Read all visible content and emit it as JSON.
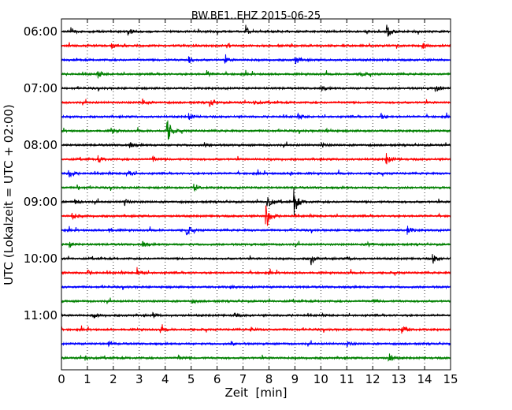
{
  "chart_data": {
    "type": "line",
    "subtype": "dayplot-seismogram",
    "title": "BW.BE1..EHZ 2015-06-25",
    "xlabel": "Zeit  [min]",
    "ylabel": "UTC (Lokalzeit = UTC + 02:00)",
    "xlim": [
      0,
      15
    ],
    "x_ticks": [
      "0",
      "1",
      "2",
      "3",
      "4",
      "5",
      "6",
      "7",
      "8",
      "9",
      "10",
      "11",
      "12",
      "13",
      "14",
      "15"
    ],
    "y_ticks": [
      "06:00",
      "07:00",
      "08:00",
      "09:00",
      "10:00",
      "11:00"
    ],
    "row_interval_minutes": 15,
    "grid": "vertical dotted at each minute",
    "colors": [
      "#000000",
      "#ff0000",
      "#0000ff",
      "#008000"
    ],
    "rows": [
      {
        "start": "06:00",
        "events": [
          {
            "t": 0.35,
            "a": 5
          },
          {
            "t": 2.55,
            "a": 6
          },
          {
            "t": 7.1,
            "a": 8
          },
          {
            "t": 12.5,
            "a": 13
          }
        ]
      },
      {
        "start": "06:15",
        "events": [
          {
            "t": 1.9,
            "a": 4
          },
          {
            "t": 6.3,
            "a": 5
          },
          {
            "t": 13.9,
            "a": 4
          }
        ]
      },
      {
        "start": "06:30",
        "events": [
          {
            "t": 4.9,
            "a": 4
          },
          {
            "t": 6.3,
            "a": 4
          },
          {
            "t": 9.0,
            "a": 7
          }
        ]
      },
      {
        "start": "06:45",
        "events": [
          {
            "t": 1.4,
            "a": 5
          },
          {
            "t": 5.6,
            "a": 4
          },
          {
            "t": 11.5,
            "a": 4
          }
        ]
      },
      {
        "start": "07:00",
        "events": [
          {
            "t": 14.4,
            "a": 5
          },
          {
            "t": 10.0,
            "a": 3
          }
        ]
      },
      {
        "start": "07:15",
        "events": [
          {
            "t": 3.1,
            "a": 5
          },
          {
            "t": 5.7,
            "a": 6
          },
          {
            "t": 7.4,
            "a": 4
          }
        ]
      },
      {
        "start": "07:30",
        "events": [
          {
            "t": 4.9,
            "a": 5
          },
          {
            "t": 9.1,
            "a": 4
          },
          {
            "t": 12.3,
            "a": 4
          }
        ]
      },
      {
        "start": "07:45",
        "events": [
          {
            "t": 1.9,
            "a": 5
          },
          {
            "t": 4.05,
            "a": 22
          },
          {
            "t": 10.2,
            "a": 4
          }
        ]
      },
      {
        "start": "08:00",
        "events": [
          {
            "t": 2.6,
            "a": 4
          },
          {
            "t": 5.5,
            "a": 3
          },
          {
            "t": 10.0,
            "a": 3
          }
        ]
      },
      {
        "start": "08:15",
        "events": [
          {
            "t": 1.4,
            "a": 5
          },
          {
            "t": 12.5,
            "a": 9
          },
          {
            "t": 3.5,
            "a": 4
          }
        ]
      },
      {
        "start": "08:30",
        "events": [
          {
            "t": 0.25,
            "a": 9
          },
          {
            "t": 2.5,
            "a": 7
          },
          {
            "t": 8.8,
            "a": 3
          }
        ]
      },
      {
        "start": "08:45",
        "events": [
          {
            "t": 5.1,
            "a": 5
          },
          {
            "t": 0.6,
            "a": 3
          }
        ]
      },
      {
        "start": "09:00",
        "events": [
          {
            "t": 0.5,
            "a": 4
          },
          {
            "t": 2.4,
            "a": 6
          },
          {
            "t": 7.9,
            "a": 12
          },
          {
            "t": 8.95,
            "a": 22
          }
        ]
      },
      {
        "start": "09:15",
        "events": [
          {
            "t": 0.4,
            "a": 6
          },
          {
            "t": 7.85,
            "a": 26
          }
        ]
      },
      {
        "start": "09:30",
        "events": [
          {
            "t": 4.8,
            "a": 9
          },
          {
            "t": 13.3,
            "a": 7
          },
          {
            "t": 1.8,
            "a": 3
          }
        ]
      },
      {
        "start": "09:45",
        "events": [
          {
            "t": 0.3,
            "a": 4
          },
          {
            "t": 3.1,
            "a": 4
          },
          {
            "t": 11.8,
            "a": 3
          }
        ]
      },
      {
        "start": "10:00",
        "events": [
          {
            "t": 9.6,
            "a": 9
          },
          {
            "t": 14.3,
            "a": 7
          },
          {
            "t": 11.0,
            "a": 3
          }
        ]
      },
      {
        "start": "10:15",
        "events": [
          {
            "t": 2.9,
            "a": 8
          },
          {
            "t": 1.0,
            "a": 3
          }
        ]
      },
      {
        "start": "10:30",
        "events": [
          {
            "t": 6.5,
            "a": 2
          }
        ]
      },
      {
        "start": "10:45",
        "events": [
          {
            "t": 5.0,
            "a": 3
          },
          {
            "t": 12.0,
            "a": 3
          }
        ]
      },
      {
        "start": "11:00",
        "events": [
          {
            "t": 1.2,
            "a": 4
          },
          {
            "t": 3.5,
            "a": 3
          },
          {
            "t": 6.6,
            "a": 4
          }
        ]
      },
      {
        "start": "11:15",
        "events": [
          {
            "t": 3.8,
            "a": 4
          },
          {
            "t": 13.1,
            "a": 8
          },
          {
            "t": 7.3,
            "a": 3
          }
        ]
      },
      {
        "start": "11:30",
        "events": [
          {
            "t": 1.8,
            "a": 3
          },
          {
            "t": 6.5,
            "a": 4
          },
          {
            "t": 11.0,
            "a": 3
          }
        ]
      },
      {
        "start": "11:45",
        "events": [
          {
            "t": 0.9,
            "a": 4
          },
          {
            "t": 12.6,
            "a": 7
          },
          {
            "t": 4.5,
            "a": 3
          }
        ]
      }
    ]
  }
}
